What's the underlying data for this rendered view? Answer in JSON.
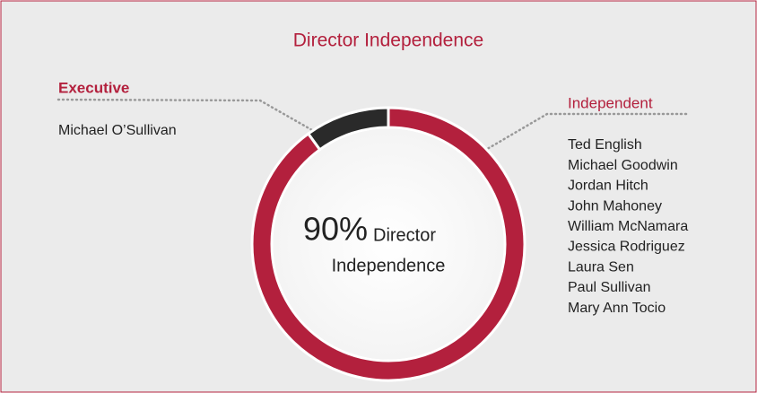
{
  "chart_data": {
    "type": "donut",
    "title": "Director Independence",
    "categories": [
      "Executive",
      "Independent"
    ],
    "values": [
      10,
      90
    ],
    "value_labels": [
      null,
      "90%"
    ],
    "colors": [
      "#2a2a2a",
      "#b3203d"
    ],
    "center_caption": [
      "Director",
      "Independence"
    ],
    "members": [
      [
        "Michael O’Sullivan"
      ],
      [
        "Ted English",
        "Michael Goodwin",
        "Jordan Hitch",
        "John Mahoney",
        "William McNamara",
        "Jessica Rodriguez",
        "Laura Sen",
        "Paul Sullivan",
        "Mary Ann Tocio"
      ]
    ]
  }
}
